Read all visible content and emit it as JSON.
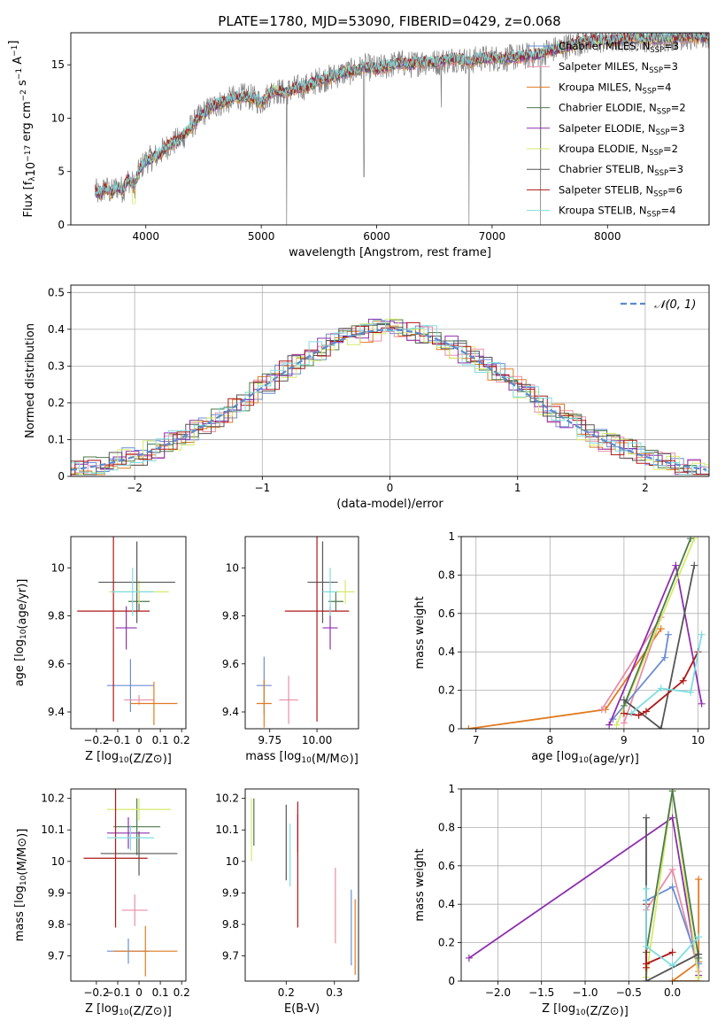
{
  "figure": {
    "title": "PLATE=1780, MJD=53090, FIBERID=0429, z=0.068"
  },
  "colors": {
    "Chabrier MILES": "#6a8fd4",
    "Salpeter MILES": "#e88ea6",
    "Kroupa MILES": "#e07b23",
    "Chabrier ELODIE": "#4e7a4a",
    "Salpeter ELODIE": "#8e2fae",
    "Kroupa ELODIE": "#d6ea6a",
    "Chabrier STELIB": "#555555",
    "Salpeter STELIB": "#b01818",
    "Kroupa STELIB": "#7fdde0",
    "data": "#808080",
    "normal": "#5b8ad0"
  },
  "chart_data": [
    {
      "id": "spectrum",
      "type": "line",
      "xlabel": "wavelength [Angstrom, rest frame]",
      "ylabel": "Flux [f_λ10^-17 erg cm^-2 s^-1 A^-1]",
      "xlim": [
        3350,
        8880
      ],
      "ylim": [
        0,
        18
      ],
      "xticks": [
        4000,
        5000,
        6000,
        7000,
        8000
      ],
      "yticks": [
        0,
        5,
        10,
        15
      ],
      "legend_position": "top-right",
      "legend": [
        {
          "label": "Chabrier MILES, N",
          "sub": "SSP",
          "suffix": "=3",
          "series": "Chabrier MILES"
        },
        {
          "label": "Salpeter MILES, N",
          "sub": "SSP",
          "suffix": "=3",
          "series": "Salpeter MILES"
        },
        {
          "label": "Kroupa MILES, N",
          "sub": "SSP",
          "suffix": "=4",
          "series": "Kroupa MILES"
        },
        {
          "label": "Chabrier ELODIE, N",
          "sub": "SSP",
          "suffix": "=2",
          "series": "Chabrier ELODIE"
        },
        {
          "label": "Salpeter ELODIE, N",
          "sub": "SSP",
          "suffix": "=3",
          "series": "Salpeter ELODIE"
        },
        {
          "label": "Kroupa ELODIE, N",
          "sub": "SSP",
          "suffix": "=2",
          "series": "Kroupa ELODIE"
        },
        {
          "label": "Chabrier STELIB, N",
          "sub": "SSP",
          "suffix": "=3",
          "series": "Chabrier STELIB"
        },
        {
          "label": "Salpeter STELIB, N",
          "sub": "SSP",
          "suffix": "=6",
          "series": "Salpeter STELIB"
        },
        {
          "label": "Kroupa STELIB, N",
          "sub": "SSP",
          "suffix": "=4",
          "series": "Kroupa STELIB"
        }
      ],
      "data_spectrum": {
        "x": [
          3560,
          3600,
          3650,
          3700,
          3750,
          3800,
          3850,
          3900,
          3950,
          4000,
          4100,
          4200,
          4300,
          4400,
          4500,
          4600,
          4700,
          4800,
          4900,
          5000,
          5100,
          5200,
          5300,
          5400,
          5500,
          5600,
          5700,
          5800,
          5900,
          6000,
          6100,
          6200,
          6300,
          6400,
          6500,
          6600,
          6700,
          6800,
          6900,
          7000,
          7100,
          7200,
          7300,
          7400,
          7450,
          7600,
          7800,
          8000,
          8200,
          8400,
          8600,
          8800
        ],
        "y": [
          3.2,
          2.8,
          3.5,
          3.0,
          3.6,
          3.3,
          4.3,
          3.6,
          5.3,
          6.0,
          6.5,
          7.5,
          8.0,
          9.3,
          10.5,
          11.2,
          11.6,
          12.0,
          12.0,
          11.5,
          12.6,
          12.4,
          12.8,
          13.0,
          13.6,
          13.8,
          14.2,
          14.4,
          14.8,
          14.6,
          14.9,
          15.2,
          15.0,
          15.3,
          15.2,
          15.4,
          15.6,
          15.3,
          15.6,
          15.6,
          15.6,
          15.7,
          15.8,
          16.0,
          16.2,
          16.6,
          17.2,
          17.3,
          17.5,
          17.4,
          17.6,
          17.6
        ],
        "dips": [
          {
            "x": 5220,
            "y": 0
          },
          {
            "x": 5890,
            "y": 4.5
          },
          {
            "x": 6560,
            "y": 11.0
          },
          {
            "x": 6800,
            "y": 0
          },
          {
            "x": 7420,
            "y": 0
          }
        ]
      }
    },
    {
      "id": "residuals",
      "type": "line",
      "xlabel": "(data-model)/error",
      "ylabel": "Normed distribution",
      "xlim": [
        -2.5,
        2.5
      ],
      "ylim": [
        0,
        0.52
      ],
      "xticks": [
        -2,
        -1,
        0,
        1,
        2
      ],
      "yticks": [
        0.0,
        0.1,
        0.2,
        0.3,
        0.4,
        0.5
      ],
      "legend_position": "top-right",
      "legend": [
        {
          "label": "𝒩(0, 1)",
          "series": "normal"
        }
      ],
      "normal": {
        "mean": 0,
        "sigma": 1
      }
    },
    {
      "id": "age-vs-Z",
      "type": "scatter",
      "xlabel": "Z [log10(Z/Z⊙)]",
      "ylabel": "age  [log10(age/yr)]",
      "xlim": [
        -0.32,
        0.22
      ],
      "ylim": [
        9.33,
        10.13
      ],
      "xticks": [
        -0.2,
        -0.1,
        0.0,
        0.1,
        0.2
      ],
      "yticks": [
        9.4,
        9.6,
        9.8,
        10.0
      ],
      "points": [
        {
          "series": "Chabrier MILES",
          "x": -0.04,
          "y": 9.51,
          "ex": 0.11,
          "ey": 0.11
        },
        {
          "series": "Salpeter MILES",
          "x": 0.0,
          "y": 9.45,
          "ex": 0.07,
          "ey": 0.02
        },
        {
          "series": "Kroupa MILES",
          "x": 0.07,
          "y": 9.435,
          "ex": 0.11,
          "ey": 0.09
        },
        {
          "series": "Chabrier ELODIE",
          "x": 0.0,
          "y": 9.86,
          "ex": 0.05,
          "ey": 0.04
        },
        {
          "series": "Salpeter ELODIE",
          "x": -0.06,
          "y": 9.75,
          "ex": 0.05,
          "ey": 0.09
        },
        {
          "series": "Kroupa ELODIE",
          "x": 0.0,
          "y": 9.9,
          "ex": 0.14,
          "ey": 0.05
        },
        {
          "series": "Chabrier STELIB",
          "x": -0.01,
          "y": 9.94,
          "ex": 0.18,
          "ey": 0.17
        },
        {
          "series": "Salpeter STELIB",
          "x": -0.12,
          "y": 9.82,
          "ex": 0.17,
          "ey": 0.46
        },
        {
          "series": "Kroupa STELIB",
          "x": -0.03,
          "y": 9.9,
          "ex": 0.1,
          "ey": 0.1
        }
      ]
    },
    {
      "id": "age-vs-mass",
      "type": "scatter",
      "xlabel": "mass [log10(M/M⊙)]",
      "ylabel": "",
      "xlim": [
        9.62,
        10.22
      ],
      "ylim": [
        9.33,
        10.13
      ],
      "xticks": [
        9.75,
        10.0
      ],
      "xticklabels": [
        "9.75",
        "10.00"
      ],
      "yticks": [
        9.4,
        9.6,
        9.8,
        10.0
      ],
      "points": [
        {
          "series": "Chabrier MILES",
          "x": 9.72,
          "y": 9.51,
          "ex": 0.04,
          "ey": 0.12
        },
        {
          "series": "Salpeter MILES",
          "x": 9.85,
          "y": 9.45,
          "ex": 0.05,
          "ey": 0.1
        },
        {
          "series": "Kroupa MILES",
          "x": 9.72,
          "y": 9.435,
          "ex": 0.04,
          "ey": 0.1
        },
        {
          "series": "Chabrier ELODIE",
          "x": 10.1,
          "y": 9.86,
          "ex": 0.04,
          "ey": 0.04
        },
        {
          "series": "Salpeter ELODIE",
          "x": 10.07,
          "y": 9.75,
          "ex": 0.04,
          "ey": 0.09
        },
        {
          "series": "Kroupa ELODIE",
          "x": 10.15,
          "y": 9.9,
          "ex": 0.05,
          "ey": 0.05
        },
        {
          "series": "Chabrier STELIB",
          "x": 10.03,
          "y": 9.94,
          "ex": 0.08,
          "ey": 0.17
        },
        {
          "series": "Salpeter STELIB",
          "x": 10.0,
          "y": 9.82,
          "ex": 0.17,
          "ey": 0.46
        },
        {
          "series": "Kroupa STELIB",
          "x": 10.07,
          "y": 9.9,
          "ex": 0.04,
          "ey": 0.1
        }
      ]
    },
    {
      "id": "weight-vs-age",
      "type": "line",
      "xlabel": "age  [log10(age/yr)]",
      "ylabel": "mass weight",
      "xlim": [
        6.8,
        10.15
      ],
      "ylim": [
        0,
        1.0
      ],
      "xticks": [
        7,
        8,
        9,
        10
      ],
      "yticks": [
        0.0,
        0.2,
        0.4,
        0.6,
        0.8,
        1.0
      ],
      "series": [
        {
          "series": "Kroupa MILES",
          "x": [
            6.9,
            8.75,
            9.5
          ],
          "y": [
            0.0,
            0.1,
            0.52
          ]
        },
        {
          "series": "Salpeter MILES",
          "x": [
            8.7,
            9.5,
            9.0
          ],
          "y": [
            0.1,
            0.58,
            0.03
          ]
        },
        {
          "series": "Chabrier MILES",
          "x": [
            8.85,
            9.55,
            9.6
          ],
          "y": [
            0.05,
            0.37,
            0.49
          ]
        },
        {
          "series": "Salpeter ELODIE",
          "x": [
            8.8,
            9.7,
            10.05
          ],
          "y": [
            0.02,
            0.85,
            0.13
          ]
        },
        {
          "series": "Kroupa ELODIE",
          "x": [
            8.9,
            9.95
          ],
          "y": [
            0.02,
            0.99
          ]
        },
        {
          "series": "Chabrier ELODIE",
          "x": [
            9.0,
            9.9
          ],
          "y": [
            0.12,
            0.99
          ]
        },
        {
          "series": "Chabrier STELIB",
          "x": [
            9.0,
            9.5,
            9.95
          ],
          "y": [
            0.15,
            0.0,
            0.85
          ]
        },
        {
          "series": "Salpeter STELIB",
          "x": [
            9.0,
            9.2,
            9.3,
            9.8,
            10.0
          ],
          "y": [
            0.08,
            0.07,
            0.09,
            0.25,
            0.4
          ]
        },
        {
          "series": "Kroupa STELIB",
          "x": [
            9.1,
            9.5,
            9.9,
            10.05
          ],
          "y": [
            0.08,
            0.21,
            0.19,
            0.49
          ]
        }
      ]
    },
    {
      "id": "mass-vs-Z",
      "type": "scatter",
      "xlabel": "Z [log10(Z/Z⊙)]",
      "ylabel": "mass [log10(M/M⊙)]",
      "xlim": [
        -0.32,
        0.22
      ],
      "ylim": [
        9.62,
        10.23
      ],
      "xticks": [
        -0.2,
        -0.1,
        0.0,
        0.1,
        0.2
      ],
      "yticks": [
        9.7,
        9.8,
        9.9,
        10.0,
        10.1,
        10.2
      ],
      "points": [
        {
          "series": "Chabrier MILES",
          "x": -0.05,
          "y": 9.715,
          "ex": 0.1,
          "ey": 0.04
        },
        {
          "series": "Salpeter MILES",
          "x": -0.02,
          "y": 9.845,
          "ex": 0.06,
          "ey": 0.05
        },
        {
          "series": "Kroupa MILES",
          "x": 0.03,
          "y": 9.715,
          "ex": 0.15,
          "ey": 0.08
        },
        {
          "series": "Chabrier ELODIE",
          "x": -0.01,
          "y": 10.11,
          "ex": 0.11,
          "ey": 0.09
        },
        {
          "series": "Salpeter ELODIE",
          "x": -0.05,
          "y": 10.09,
          "ex": 0.1,
          "ey": 0.05
        },
        {
          "series": "Kroupa ELODIE",
          "x": 0.0,
          "y": 10.165,
          "ex": 0.15,
          "ey": 0.035
        },
        {
          "series": "Chabrier STELIB",
          "x": 0.0,
          "y": 10.025,
          "ex": 0.18,
          "ey": 0.07
        },
        {
          "series": "Salpeter STELIB",
          "x": -0.11,
          "y": 10.01,
          "ex": 0.15,
          "ey": 0.22
        },
        {
          "series": "Kroupa STELIB",
          "x": -0.04,
          "y": 10.075,
          "ex": 0.11,
          "ey": 0.04
        }
      ]
    },
    {
      "id": "mass-vs-EBV",
      "type": "scatter",
      "xlabel": "E(B-V)",
      "ylabel": "",
      "xlim": [
        0.115,
        0.35
      ],
      "ylim": [
        9.62,
        10.23
      ],
      "xticks": [
        0.1,
        0.2,
        0.3
      ],
      "yticks": [
        9.7,
        9.8,
        9.9,
        10.0,
        10.1,
        10.2
      ],
      "points": [
        {
          "series": "Chabrier MILES",
          "x": 0.335,
          "y": 9.79,
          "ey": 0.12
        },
        {
          "series": "Salpeter MILES",
          "x": 0.302,
          "y": 9.86,
          "ey": 0.12
        },
        {
          "series": "Kroupa MILES",
          "x": 0.343,
          "y": 9.76,
          "ey": 0.12
        },
        {
          "series": "Chabrier ELODIE",
          "x": 0.133,
          "y": 10.125,
          "ey": 0.075
        },
        {
          "series": "Salpeter ELODIE",
          "x": 0.224,
          "y": 10.09,
          "ey": 0.06
        },
        {
          "series": "Kroupa ELODIE",
          "x": 0.128,
          "y": 10.1,
          "ey": 0.1
        },
        {
          "series": "Chabrier STELIB",
          "x": 0.2,
          "y": 10.06,
          "ey": 0.12
        },
        {
          "series": "Salpeter STELIB",
          "x": 0.224,
          "y": 9.99,
          "ey": 0.2
        },
        {
          "series": "Kroupa STELIB",
          "x": 0.208,
          "y": 10.02,
          "ey": 0.1
        }
      ]
    },
    {
      "id": "weight-vs-Z",
      "type": "line",
      "xlabel": "Z [log10(Z/Z⊙)]",
      "ylabel": "mass weight",
      "xlim": [
        -2.42,
        0.42
      ],
      "ylim": [
        0,
        1.0
      ],
      "xticks": [
        -2.0,
        -1.5,
        -1.0,
        -0.5,
        0.0
      ],
      "xticklabels": [
        "−2.0",
        "−1.5",
        "−1.0",
        "−0.5",
        "0.0"
      ],
      "yticks": [
        0.0,
        0.2,
        0.4,
        0.6,
        0.8,
        1.0
      ],
      "series": [
        {
          "series": "Salpeter ELODIE",
          "x": [
            -2.33,
            0.0,
            0.3
          ],
          "y": [
            0.12,
            0.85,
            0.03
          ]
        },
        {
          "series": "Kroupa MILES",
          "x": [
            0.3,
            0.3,
            0.0,
            0.3
          ],
          "y": [
            0.53,
            0.0,
            0.0,
            0.1
          ]
        },
        {
          "series": "Salpeter MILES",
          "x": [
            -0.3,
            0.0,
            0.3
          ],
          "y": [
            0.37,
            0.58,
            0.05
          ]
        },
        {
          "series": "Chabrier MILES",
          "x": [
            -0.3,
            0.0,
            0.3
          ],
          "y": [
            0.42,
            0.49,
            0.09
          ]
        },
        {
          "series": "Kroupa ELODIE",
          "x": [
            -0.3,
            0.0,
            0.3
          ],
          "y": [
            0.02,
            0.99,
            0.02
          ]
        },
        {
          "series": "Chabrier ELODIE",
          "x": [
            -0.3,
            0.0,
            0.3
          ],
          "y": [
            0.15,
            0.99,
            0.12
          ]
        },
        {
          "series": "Chabrier STELIB",
          "x": [
            -0.3,
            -0.3,
            0.3
          ],
          "y": [
            0.85,
            0.0,
            0.14
          ]
        },
        {
          "series": "Salpeter STELIB",
          "x": [
            -0.3,
            -0.3,
            -0.3,
            0.0
          ],
          "y": [
            0.4,
            0.07,
            0.09,
            0.15
          ]
        },
        {
          "series": "Kroupa STELIB",
          "x": [
            -0.3,
            -0.3,
            0.0,
            0.3
          ],
          "y": [
            0.48,
            0.18,
            0.08,
            0.23
          ]
        }
      ]
    }
  ]
}
